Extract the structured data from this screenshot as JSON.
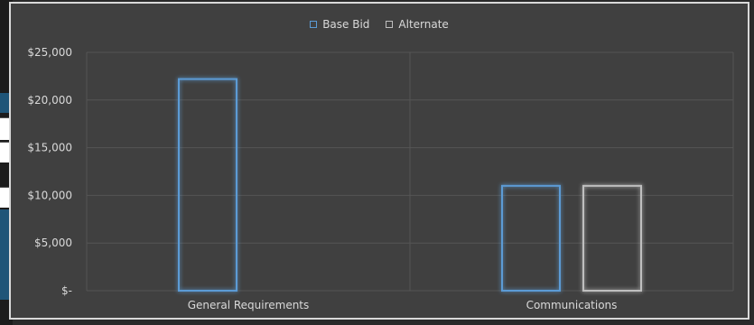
{
  "chart_data": {
    "type": "bar",
    "categories": [
      "General Requirements",
      "Communications"
    ],
    "series": [
      {
        "name": "Base Bid",
        "values": [
          22200,
          11000
        ],
        "color": "#5b9bd5"
      },
      {
        "name": "Alternate",
        "values": [
          null,
          11000
        ],
        "color": "#bfbfbf"
      }
    ],
    "y_ticks": [
      {
        "value": 0,
        "label": "$-"
      },
      {
        "value": 5000,
        "label": "$5,000"
      },
      {
        "value": 10000,
        "label": "$10,000"
      },
      {
        "value": 15000,
        "label": "$15,000"
      },
      {
        "value": 20000,
        "label": "$20,000"
      },
      {
        "value": 25000,
        "label": "$25,000"
      }
    ],
    "ylim": [
      0,
      25000
    ],
    "grid": true,
    "legend_position": "top-center"
  },
  "legend": {
    "base_label": "Base Bid",
    "alternate_label": "Alternate"
  }
}
